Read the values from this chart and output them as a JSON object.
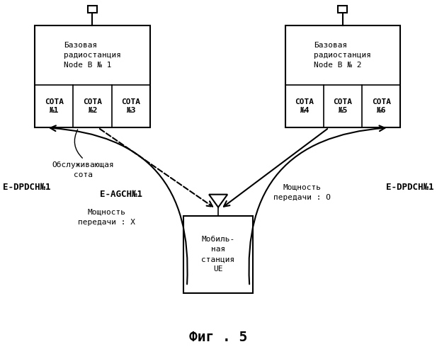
{
  "title": "Фиг . 5",
  "bg_color": "#ffffff",
  "bs1_label": "Базовая\nрадиостанция\nNode B № 1",
  "bs1_cells": [
    "СОТА\n№1",
    "СОТА\n№2",
    "СОТА\n№3"
  ],
  "bs2_label": "Базовая\nрадиостанция\nNode B № 2",
  "bs2_cells": [
    "СОТА\n№4",
    "СОТА\n№5",
    "СОТА\n№6"
  ],
  "ue_label": "Мобиль-\nная\nстанция\nUE",
  "label_serving": "Обслуживающая\nсота",
  "label_eagch": "E-AGCH№1",
  "label_power_x": "Мощность\nпередачи : X",
  "label_power_o": "Мощность\nпередачи : О",
  "label_edpdch_left": "E-DPDCH№1",
  "label_edpdch_right": "E-DPDCH№1"
}
